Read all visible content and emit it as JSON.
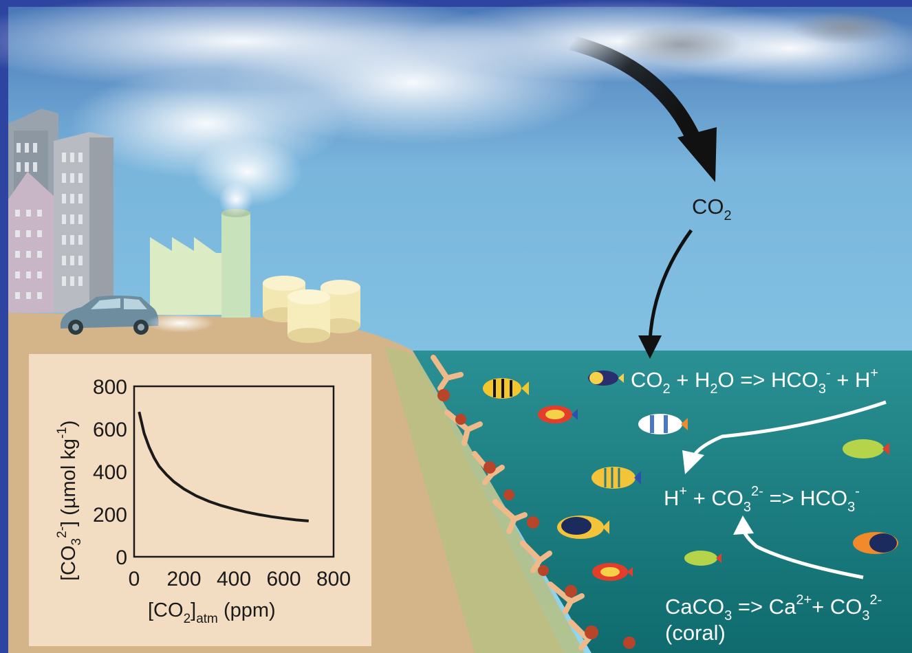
{
  "atmosphere_label": {
    "main": "CO",
    "sub": "2"
  },
  "equations": {
    "eq1": {
      "parts": [
        "CO",
        "2",
        " + H",
        "2",
        "O => HCO",
        "3",
        "-",
        " + H",
        "+"
      ]
    },
    "eq2": {
      "parts": [
        "H",
        "+",
        " + CO",
        "3",
        "2-",
        " => HCO",
        "3",
        "-"
      ]
    },
    "eq3": {
      "parts": [
        "CaCO",
        "3",
        " => Ca",
        "2+",
        "+ CO",
        "3",
        "2-"
      ],
      "note": "(coral)"
    }
  },
  "chart_data": {
    "type": "line",
    "xlabel": {
      "open": "[CO",
      "sub": "2",
      "close": "]",
      "sub2": "atm",
      "unit": " (ppm)"
    },
    "ylabel": {
      "open": "[CO",
      "sub": "3",
      "sup": "2-",
      "close": "] (µmol kg",
      "sup2": "-1",
      "end": ")"
    },
    "xlim": [
      0,
      800
    ],
    "ylim": [
      0,
      800
    ],
    "xticks": [
      "0",
      "200",
      "400",
      "600",
      "800"
    ],
    "yticks": [
      "0",
      "200",
      "400",
      "600",
      "800"
    ],
    "series": [
      {
        "values": [
          [
            20,
            680
          ],
          [
            40,
            580
          ],
          [
            60,
            515
          ],
          [
            80,
            465
          ],
          [
            100,
            425
          ],
          [
            130,
            385
          ],
          [
            160,
            352
          ],
          [
            200,
            318
          ],
          [
            250,
            285
          ],
          [
            300,
            260
          ],
          [
            350,
            240
          ],
          [
            400,
            224
          ],
          [
            450,
            210
          ],
          [
            500,
            198
          ],
          [
            550,
            188
          ],
          [
            600,
            180
          ],
          [
            650,
            173
          ],
          [
            700,
            168
          ]
        ]
      }
    ]
  },
  "colors": {
    "sky_top": "#2f5fa8",
    "sky_bottom": "#8fd3ea",
    "ocean": "#167a7c",
    "land": "#d5b48a",
    "chart_bg": "#f2dcc0"
  }
}
